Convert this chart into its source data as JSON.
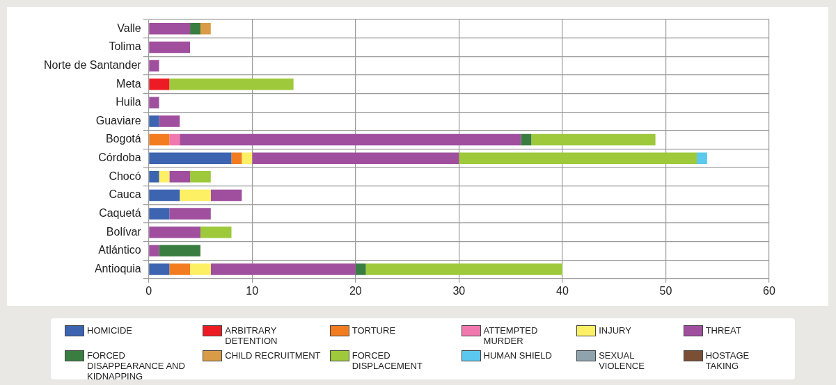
{
  "chart_data": {
    "type": "bar",
    "orientation": "horizontal",
    "stacked": true,
    "categories": [
      "Valle",
      "Tolima",
      "Norte de Santander",
      "Meta",
      "Huila",
      "Guaviare",
      "Bogotá",
      "Córdoba",
      "Chocó",
      "Cauca",
      "Caquetá",
      "Bolívar",
      "Atlántico",
      "Antioquia"
    ],
    "series": [
      {
        "name": "HOMICIDE",
        "color": "#3c64b0",
        "values": [
          0,
          0,
          0,
          0,
          0,
          1,
          0,
          8,
          1,
          3,
          2,
          0,
          0,
          2
        ]
      },
      {
        "name": "ARBITRARY DETENTION",
        "color": "#ed1c24",
        "values": [
          0,
          0,
          0,
          2,
          0,
          0,
          0,
          0,
          0,
          0,
          0,
          0,
          0,
          0
        ]
      },
      {
        "name": "TORTURE",
        "color": "#f47c20",
        "values": [
          0,
          0,
          0,
          0,
          0,
          0,
          2,
          1,
          0,
          0,
          0,
          0,
          0,
          2
        ]
      },
      {
        "name": "ATTEMPTED MURDER",
        "color": "#f078ae",
        "values": [
          0,
          0,
          0,
          0,
          0,
          0,
          1,
          0,
          0,
          0,
          0,
          0,
          0,
          0
        ]
      },
      {
        "name": "INJURY",
        "color": "#fdf065",
        "values": [
          0,
          0,
          0,
          0,
          0,
          0,
          0,
          1,
          1,
          3,
          0,
          0,
          0,
          2
        ]
      },
      {
        "name": "THREAT",
        "color": "#a04f9e",
        "values": [
          4,
          4,
          1,
          0,
          1,
          2,
          33,
          20,
          2,
          3,
          4,
          5,
          1,
          14
        ]
      },
      {
        "name": "FORCED DISAPPEARANCE AND KIDNAPPING",
        "color": "#3a7d41",
        "values": [
          1,
          0,
          0,
          0,
          0,
          0,
          1,
          0,
          0,
          0,
          0,
          0,
          4,
          1
        ]
      },
      {
        "name": "CHILD RECRUITMENT",
        "color": "#d99b45",
        "values": [
          1,
          0,
          0,
          0,
          0,
          0,
          0,
          0,
          0,
          0,
          0,
          0,
          0,
          0
        ]
      },
      {
        "name": "FORCED DISPLACEMENT",
        "color": "#9dc93b",
        "values": [
          0,
          0,
          0,
          12,
          0,
          0,
          12,
          23,
          2,
          0,
          0,
          3,
          0,
          19
        ]
      },
      {
        "name": "HUMAN SHIELD",
        "color": "#5bc8ee",
        "values": [
          0,
          0,
          0,
          0,
          0,
          0,
          0,
          1,
          0,
          0,
          0,
          0,
          0,
          0
        ]
      },
      {
        "name": "SEXUAL VIOLENCE",
        "color": "#8ea3ae",
        "values": [
          0,
          0,
          0,
          0,
          0,
          0,
          0,
          0,
          0,
          0,
          0,
          0,
          0,
          0
        ]
      },
      {
        "name": "HOSTAGE TAKING",
        "color": "#7b4f35",
        "values": [
          0,
          0,
          0,
          0,
          0,
          0,
          0,
          0,
          0,
          0,
          0,
          0,
          0,
          0
        ]
      }
    ],
    "xlim": [
      0,
      60
    ],
    "xticks": [
      0,
      10,
      20,
      30,
      40,
      50,
      60
    ],
    "grid": true,
    "legend": "bottom"
  }
}
